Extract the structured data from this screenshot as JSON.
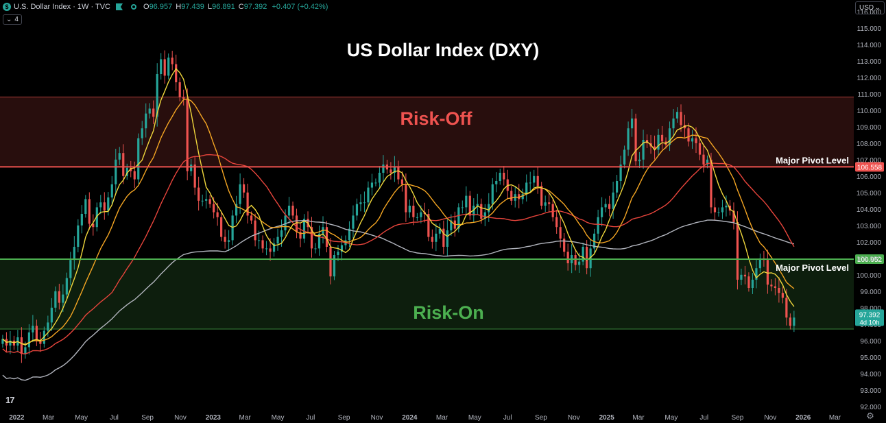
{
  "legend": {
    "symbol_badge": "$",
    "title": "U.S. Dollar Index · 1W · TVC",
    "open_label": "O",
    "open": "96.957",
    "high_label": "H",
    "high": "97.439",
    "low_label": "L",
    "low": "96.891",
    "close_label": "C",
    "close": "97.392",
    "change": "+0.407 (+0.42%)",
    "collapse_count": "4"
  },
  "toolbar": {
    "currency": "USD"
  },
  "colors": {
    "up": "#26a69a",
    "down": "#ef5350",
    "risk_off": "#ef5350",
    "risk_on": "#4caf50",
    "ma_yellow": "#f0d73c",
    "ma_orange": "#f5a623",
    "ma_red": "#e8453c",
    "ma_grey": "#b2b5be"
  },
  "chart_data": {
    "type": "candlestick",
    "title": "US Dollar Index (DXY)",
    "ylim": [
      91.7,
      116.7
    ],
    "y_ticks": [
      "92.000",
      "93.000",
      "94.000",
      "95.000",
      "96.000",
      "97.000",
      "98.000",
      "99.000",
      "100.000",
      "101.000",
      "102.000",
      "103.000",
      "104.000",
      "105.000",
      "106.000",
      "107.000",
      "108.000",
      "109.000",
      "110.000",
      "111.000",
      "112.000",
      "113.000",
      "114.000",
      "115.000",
      "116.000"
    ],
    "x_range": [
      "2021-12-01",
      "2026-04-05"
    ],
    "x_ticks": [
      {
        "label": "2022",
        "date": "2022-01-01",
        "bold": true
      },
      {
        "label": "Mar",
        "date": "2022-03-01"
      },
      {
        "label": "May",
        "date": "2022-05-01"
      },
      {
        "label": "Jul",
        "date": "2022-07-01"
      },
      {
        "label": "Sep",
        "date": "2022-09-01"
      },
      {
        "label": "Nov",
        "date": "2022-11-01"
      },
      {
        "label": "2023",
        "date": "2023-01-01",
        "bold": true
      },
      {
        "label": "Mar",
        "date": "2023-03-01"
      },
      {
        "label": "May",
        "date": "2023-05-01"
      },
      {
        "label": "Jul",
        "date": "2023-07-01"
      },
      {
        "label": "Sep",
        "date": "2023-09-01"
      },
      {
        "label": "Nov",
        "date": "2023-11-01"
      },
      {
        "label": "2024",
        "date": "2024-01-01",
        "bold": true
      },
      {
        "label": "Mar",
        "date": "2024-03-01"
      },
      {
        "label": "May",
        "date": "2024-05-01"
      },
      {
        "label": "Jul",
        "date": "2024-07-01"
      },
      {
        "label": "Sep",
        "date": "2024-09-01"
      },
      {
        "label": "Nov",
        "date": "2024-11-01"
      },
      {
        "label": "2025",
        "date": "2025-01-01",
        "bold": true
      },
      {
        "label": "Mar",
        "date": "2025-03-01"
      },
      {
        "label": "May",
        "date": "2025-05-01"
      },
      {
        "label": "Jul",
        "date": "2025-07-01"
      },
      {
        "label": "Sep",
        "date": "2025-09-01"
      },
      {
        "label": "Nov",
        "date": "2025-11-01"
      },
      {
        "label": "2026",
        "date": "2026-01-01",
        "bold": true
      },
      {
        "label": "Mar",
        "date": "2026-03-01"
      }
    ],
    "candles_start": "2021-12-06",
    "candle_closes": [
      96.1,
      95.7,
      96.0,
      95.7,
      96.2,
      95.2,
      95.6,
      96.5,
      96.9,
      96.0,
      95.8,
      96.6,
      97.1,
      98.0,
      99.0,
      98.3,
      98.8,
      99.8,
      100.9,
      101.7,
      103.0,
      103.7,
      104.6,
      103.1,
      102.9,
      104.1,
      104.4,
      103.9,
      104.7,
      105.5,
      107.0,
      107.4,
      106.0,
      106.5,
      106.3,
      105.8,
      108.3,
      108.9,
      109.8,
      110.1,
      109.6,
      112.2,
      113.1,
      112.1,
      113.2,
      112.8,
      111.7,
      110.8,
      110.7,
      106.3,
      106.7,
      105.3,
      104.5,
      104.5,
      104.6,
      104.3,
      103.8,
      103.5,
      102.3,
      102.0,
      102.1,
      103.6,
      104.3,
      105.5,
      105.0,
      103.6,
      103.3,
      102.1,
      102.1,
      101.6,
      101.6,
      101.4,
      101.9,
      102.3,
      102.7,
      103.6,
      104.2,
      103.6,
      102.6,
      102.2,
      103.4,
      102.9,
      101.6,
      101.6,
      102.5,
      102.9,
      101.7,
      99.9,
      101.2,
      101.4,
      101.8,
      102.1,
      102.8,
      103.6,
      104.3,
      104.4,
      104.4,
      105.3,
      105.6,
      105.6,
      106.2,
      106.7,
      106.4,
      106.2,
      106.6,
      105.8,
      105.5,
      103.8,
      104.2,
      103.5,
      103.5,
      103.8,
      103.7,
      102.3,
      102.0,
      102.5,
      102.8,
      101.7,
      102.7,
      103.3,
      102.8,
      104.1,
      104.1,
      104.8,
      103.6,
      104.2,
      104.3,
      103.4,
      103.8,
      104.3,
      105.5,
      105.7,
      106.2,
      105.8,
      105.1,
      104.5,
      104.9,
      104.6,
      104.9,
      105.6,
      105.6,
      106.0,
      105.4,
      104.2,
      104.4,
      104.3,
      103.5,
      102.9,
      102.2,
      101.4,
      100.7,
      101.2,
      100.6,
      100.8,
      101.7,
      100.4,
      101.6,
      102.5,
      103.5,
      104.1,
      104.3,
      104.0,
      105.0,
      105.7,
      106.7,
      107.6,
      108.9,
      109.5,
      106.9,
      107.0,
      108.2,
      108.0,
      107.8,
      107.6,
      108.5,
      108.1,
      107.9,
      108.9,
      109.5,
      109.9,
      109.1,
      108.9,
      108.1,
      108.3,
      108.0,
      107.3,
      106.7,
      107.0,
      104.1,
      103.8,
      103.8,
      104.1,
      104.2,
      103.9,
      103.2,
      99.7,
      100.0,
      99.9,
      99.2,
      99.7,
      100.4,
      101.0,
      100.9,
      99.4,
      99.3,
      99.2,
      98.9,
      98.6,
      97.4,
      96.9,
      97.4
    ]
  },
  "zones": {
    "risk_off": {
      "label": "Risk-Off",
      "from": 106.558,
      "to": 110.8
    },
    "risk_on": {
      "label": "Risk-On",
      "from": 96.7,
      "to": 100.952
    }
  },
  "pivots": [
    {
      "label": "Major Pivot Level",
      "value": 106.558,
      "price_label": "106.558"
    },
    {
      "label": "Major Pivot Level",
      "value": 100.952,
      "price_label": "100.952"
    }
  ],
  "last_price": {
    "price": "97.392",
    "countdown": "4d 10h",
    "value": 97.392
  }
}
